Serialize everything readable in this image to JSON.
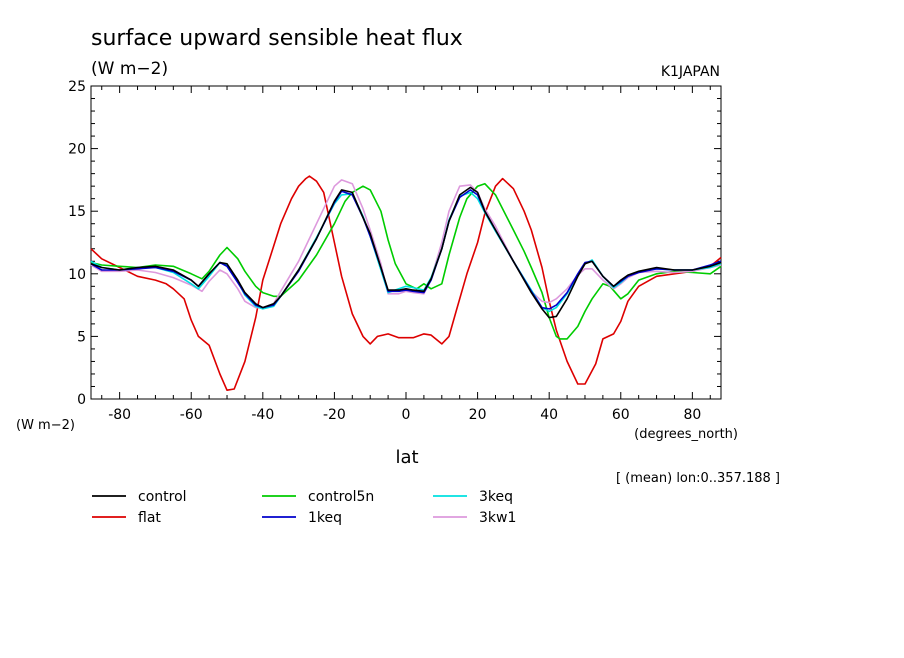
{
  "chart_data": {
    "type": "line",
    "title": "surface upward sensible heat flux",
    "units": "(W m−2)",
    "source_label": "K1JAPAN",
    "ylabel": "(W m−2)",
    "xlabel": "lat",
    "xunits": "(degrees_north)",
    "annotation": "[ (mean) lon:0..357.188 ]",
    "xlim": [
      -88,
      88
    ],
    "ylim": [
      0,
      25
    ],
    "xticks": [
      "-80",
      "-60",
      "-40",
      "-20",
      "0",
      "20",
      "40",
      "60",
      "80"
    ],
    "yticks": [
      "0",
      "5",
      "10",
      "15",
      "20",
      "25"
    ],
    "grid": false,
    "legend_position": "bottom",
    "series": [
      {
        "name": "control",
        "color": "#000000",
        "x": [
          -88,
          -85,
          -80,
          -75,
          -70,
          -65,
          -60,
          -58,
          -55,
          -52,
          -50,
          -47,
          -45,
          -42,
          -40,
          -37,
          -35,
          -30,
          -25,
          -20,
          -18,
          -15,
          -12,
          -10,
          -7,
          -5,
          -2,
          0,
          2,
          5,
          7,
          10,
          12,
          15,
          18,
          20,
          22,
          25,
          30,
          35,
          38,
          40,
          42,
          45,
          48,
          50,
          52,
          55,
          58,
          60,
          62,
          65,
          70,
          75,
          80,
          85,
          88
        ],
        "y": [
          10.8,
          10.5,
          10.3,
          10.5,
          10.6,
          10.3,
          9.5,
          9.0,
          10.0,
          10.9,
          10.8,
          9.5,
          8.5,
          7.6,
          7.3,
          7.6,
          8.2,
          10.3,
          12.8,
          15.8,
          16.7,
          16.5,
          14.5,
          13.2,
          10.5,
          8.7,
          8.7,
          8.8,
          8.7,
          8.6,
          9.6,
          12.0,
          14.2,
          16.3,
          16.9,
          16.5,
          15.0,
          13.5,
          11.0,
          8.5,
          7.2,
          6.5,
          6.6,
          8.0,
          9.8,
          10.8,
          11.0,
          9.8,
          9.0,
          9.5,
          9.9,
          10.2,
          10.5,
          10.3,
          10.3,
          10.6,
          10.9
        ]
      },
      {
        "name": "flat",
        "color": "#dd0000",
        "x": [
          -88,
          -85,
          -80,
          -75,
          -70,
          -67,
          -65,
          -62,
          -60,
          -58,
          -55,
          -52,
          -50,
          -48,
          -45,
          -42,
          -40,
          -37,
          -35,
          -32,
          -30,
          -28,
          -27,
          -25,
          -23,
          -20,
          -18,
          -15,
          -12,
          -10,
          -8,
          -5,
          -2,
          0,
          2,
          5,
          7,
          10,
          12,
          14,
          17,
          20,
          22,
          25,
          27,
          30,
          33,
          35,
          38,
          40,
          42,
          45,
          48,
          50,
          53,
          55,
          58,
          60,
          62,
          65,
          70,
          75,
          80,
          85,
          88
        ],
        "y": [
          12.0,
          11.2,
          10.5,
          9.8,
          9.5,
          9.2,
          8.8,
          8.0,
          6.3,
          5.0,
          4.3,
          2.0,
          0.7,
          0.8,
          3.0,
          6.5,
          9.5,
          12.2,
          14.0,
          16.0,
          17.0,
          17.6,
          17.8,
          17.4,
          16.5,
          12.5,
          9.8,
          6.8,
          5.0,
          4.4,
          5.0,
          5.2,
          4.9,
          4.9,
          4.9,
          5.2,
          5.1,
          4.4,
          5.0,
          7.0,
          10.0,
          12.5,
          14.8,
          17.0,
          17.6,
          16.8,
          15.0,
          13.5,
          10.5,
          7.8,
          5.5,
          3.0,
          1.2,
          1.2,
          2.8,
          4.8,
          5.2,
          6.2,
          7.8,
          9.0,
          9.8,
          10.0,
          10.2,
          10.6,
          11.3
        ]
      },
      {
        "name": "control5n",
        "color": "#00cc00",
        "x": [
          -88,
          -85,
          -80,
          -75,
          -70,
          -65,
          -60,
          -57,
          -55,
          -52,
          -50,
          -47,
          -45,
          -42,
          -40,
          -37,
          -35,
          -30,
          -25,
          -20,
          -17,
          -15,
          -12,
          -10,
          -7,
          -5,
          -3,
          0,
          3,
          5,
          7,
          10,
          12,
          15,
          17,
          20,
          22,
          25,
          30,
          33,
          35,
          38,
          40,
          42,
          43,
          45,
          48,
          50,
          52,
          55,
          57,
          60,
          62,
          65,
          70,
          75,
          80,
          85,
          88
        ],
        "y": [
          10.9,
          10.7,
          10.6,
          10.5,
          10.7,
          10.6,
          10.0,
          9.6,
          10.2,
          11.5,
          12.1,
          11.2,
          10.2,
          9.0,
          8.5,
          8.2,
          8.2,
          9.5,
          11.5,
          14.0,
          15.8,
          16.5,
          17.0,
          16.7,
          15.0,
          12.7,
          10.8,
          9.2,
          8.8,
          9.2,
          8.8,
          9.2,
          11.5,
          14.5,
          16.0,
          17.0,
          17.2,
          16.3,
          13.5,
          11.8,
          10.5,
          8.5,
          6.5,
          5.0,
          4.8,
          4.8,
          5.8,
          7.0,
          8.0,
          9.2,
          9.0,
          8.0,
          8.4,
          9.5,
          10.0,
          10.2,
          10.1,
          10.0,
          10.6
        ]
      },
      {
        "name": "1keq",
        "color": "#0000cc",
        "x": [
          -88,
          -85,
          -80,
          -75,
          -70,
          -65,
          -60,
          -58,
          -55,
          -52,
          -50,
          -47,
          -45,
          -42,
          -40,
          -37,
          -35,
          -30,
          -25,
          -20,
          -18,
          -15,
          -12,
          -10,
          -7,
          -5,
          -2,
          0,
          2,
          5,
          7,
          10,
          12,
          15,
          18,
          20,
          22,
          25,
          30,
          35,
          38,
          40,
          42,
          45,
          48,
          50,
          52,
          55,
          58,
          60,
          62,
          65,
          70,
          75,
          80,
          85,
          88
        ],
        "y": [
          10.8,
          10.3,
          10.3,
          10.4,
          10.5,
          10.2,
          9.5,
          9.0,
          10.0,
          10.9,
          10.6,
          9.3,
          8.4,
          7.5,
          7.3,
          7.5,
          8.2,
          10.2,
          12.8,
          15.7,
          16.6,
          16.3,
          14.5,
          13.0,
          10.5,
          8.6,
          8.6,
          8.7,
          8.6,
          8.5,
          9.5,
          12.0,
          14.2,
          16.1,
          16.7,
          16.3,
          15.0,
          13.5,
          11.0,
          8.6,
          7.3,
          7.2,
          7.5,
          8.5,
          10.0,
          10.9,
          11.0,
          9.8,
          9.0,
          9.4,
          9.8,
          10.1,
          10.4,
          10.3,
          10.3,
          10.7,
          11.0
        ]
      },
      {
        "name": "3keq",
        "color": "#00e0e0",
        "x": [
          -88,
          -85,
          -80,
          -75,
          -70,
          -65,
          -60,
          -58,
          -55,
          -52,
          -50,
          -47,
          -45,
          -42,
          -40,
          -37,
          -35,
          -30,
          -25,
          -20,
          -18,
          -15,
          -12,
          -10,
          -7,
          -5,
          -2,
          0,
          2,
          5,
          7,
          10,
          12,
          15,
          18,
          20,
          22,
          25,
          30,
          35,
          38,
          40,
          42,
          45,
          48,
          50,
          52,
          55,
          58,
          60,
          62,
          65,
          70,
          75,
          80,
          85,
          88
        ],
        "y": [
          11.0,
          10.5,
          10.3,
          10.5,
          10.5,
          10.1,
          9.2,
          8.8,
          9.8,
          10.9,
          10.7,
          9.4,
          8.3,
          7.4,
          7.2,
          7.4,
          8.2,
          10.3,
          12.9,
          15.6,
          16.3,
          16.4,
          14.6,
          13.0,
          10.3,
          8.5,
          8.8,
          9.0,
          8.9,
          8.7,
          9.7,
          12.0,
          14.3,
          16.2,
          16.5,
          16.0,
          14.9,
          13.4,
          11.0,
          8.7,
          7.3,
          7.0,
          7.3,
          8.4,
          9.9,
          10.8,
          11.1,
          9.8,
          8.9,
          9.3,
          9.8,
          10.2,
          10.4,
          10.3,
          10.3,
          10.5,
          10.8
        ]
      },
      {
        "name": "3kw1",
        "color": "#dd99dd",
        "x": [
          -88,
          -85,
          -80,
          -75,
          -70,
          -65,
          -60,
          -57,
          -55,
          -52,
          -50,
          -47,
          -45,
          -42,
          -40,
          -37,
          -35,
          -30,
          -25,
          -20,
          -18,
          -15,
          -12,
          -10,
          -7,
          -5,
          -2,
          0,
          2,
          5,
          7,
          10,
          12,
          15,
          18,
          20,
          22,
          25,
          30,
          35,
          38,
          40,
          42,
          45,
          48,
          50,
          52,
          55,
          58,
          60,
          62,
          65,
          70,
          75,
          80,
          85,
          88
        ],
        "y": [
          10.7,
          10.2,
          10.2,
          10.3,
          10.1,
          9.7,
          9.1,
          8.6,
          9.4,
          10.3,
          10.0,
          8.8,
          7.8,
          7.3,
          7.3,
          7.6,
          8.6,
          11.0,
          14.0,
          17.0,
          17.5,
          17.2,
          15.2,
          13.5,
          10.8,
          8.4,
          8.4,
          8.6,
          8.5,
          8.4,
          9.6,
          12.5,
          15.0,
          17.0,
          17.1,
          16.5,
          15.2,
          13.8,
          11.0,
          8.6,
          7.8,
          7.7,
          8.0,
          8.8,
          9.9,
          10.4,
          10.4,
          9.5,
          8.8,
          9.2,
          9.7,
          10.1,
          10.2,
          10.1,
          10.2,
          10.5,
          10.7
        ]
      }
    ]
  }
}
